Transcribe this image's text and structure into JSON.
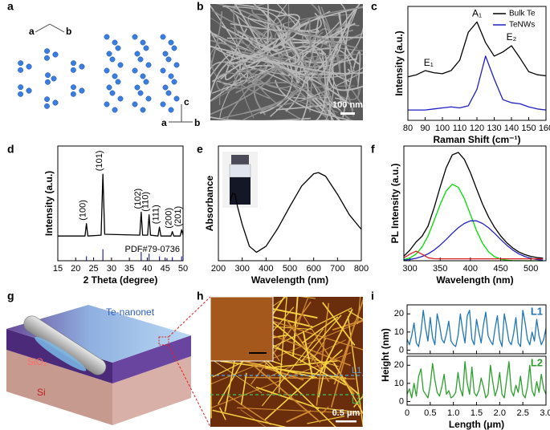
{
  "panel_labels": [
    "a",
    "b",
    "c",
    "d",
    "e",
    "f",
    "g",
    "h",
    "i"
  ],
  "panel_a": {
    "axes_top": [
      "a",
      "b"
    ],
    "axes_bottom": [
      "c",
      "a",
      "b"
    ]
  },
  "panel_b": {
    "scale_bar": "100 nm"
  },
  "panel_g": {
    "labels": [
      "Te-nanonet",
      "SiO₂",
      "Si"
    ]
  },
  "panel_h": {
    "scale_bar": "0.5 μm",
    "line_labels": [
      "L1",
      "L2"
    ]
  },
  "chart_data": [
    {
      "type": "line",
      "xlabel": "Raman Shift (cm⁻¹)",
      "ylabel": "Intensity (a.u.)",
      "x": [
        80,
        85,
        90,
        95,
        100,
        105,
        110,
        115,
        120,
        125,
        130,
        135,
        140,
        145,
        150,
        155,
        160
      ],
      "series": [
        {
          "name": "Bulk Te",
          "color": "#000000",
          "values": [
            0.42,
            0.44,
            0.48,
            0.46,
            0.45,
            0.48,
            0.58,
            0.85,
            0.95,
            0.75,
            0.62,
            0.66,
            0.72,
            0.6,
            0.47,
            0.44,
            0.43
          ]
        },
        {
          "name": "TeNWs",
          "color": "#1f1fbf",
          "values": [
            0.1,
            0.1,
            0.1,
            0.11,
            0.12,
            0.13,
            0.12,
            0.14,
            0.3,
            0.62,
            0.4,
            0.2,
            0.17,
            0.16,
            0.13,
            0.11,
            0.1
          ]
        }
      ],
      "xlim": [
        80,
        160
      ],
      "ylim": [
        0,
        1.1
      ],
      "xticks": [
        80,
        90,
        100,
        110,
        120,
        130,
        140,
        150,
        160
      ],
      "legend": "upper right",
      "annotations": [
        {
          "text": "E₁",
          "x": 92
        },
        {
          "text": "A₁",
          "x": 120
        },
        {
          "text": "E₂",
          "x": 140
        }
      ]
    },
    {
      "type": "line",
      "xlabel": "2 Theta (degree)",
      "ylabel": "Intensity (a.u.)",
      "x": [
        15,
        22.6,
        23,
        23.4,
        27.1,
        27.6,
        28.1,
        37.9,
        38.3,
        38.7,
        40.1,
        40.5,
        40.9,
        43,
        43.4,
        43.8,
        46.6,
        47,
        47.4,
        49.2,
        49.6,
        50
      ],
      "series": [
        {
          "color": "#000000",
          "values": [
            0.28,
            0.28,
            0.42,
            0.28,
            0.29,
            0.98,
            0.3,
            0.29,
            0.55,
            0.29,
            0.29,
            0.52,
            0.29,
            0.28,
            0.38,
            0.28,
            0.28,
            0.33,
            0.28,
            0.28,
            0.35,
            0.29
          ]
        }
      ],
      "xlim": [
        15,
        50
      ],
      "ylim": [
        0,
        1.3
      ],
      "xticks": [
        15,
        20,
        25,
        30,
        35,
        40,
        45,
        50
      ],
      "annotations": [
        {
          "text": "(100)",
          "x": 23
        },
        {
          "text": "(101)",
          "x": 27.6
        },
        {
          "text": "(102)",
          "x": 38.3
        },
        {
          "text": "(110)",
          "x": 40.5
        },
        {
          "text": "(111)",
          "x": 43.4
        },
        {
          "text": "(200)",
          "x": 47
        },
        {
          "text": "(201)",
          "x": 49.6
        }
      ],
      "reference": {
        "label": "PDF#79-0736",
        "color": "#2222cc",
        "x": [
          23,
          27.6,
          38.3,
          40.5,
          43.4,
          45.5,
          47,
          49.6
        ],
        "values": [
          0.05,
          0.13,
          0.1,
          0.08,
          0.05,
          0.03,
          0.04,
          0.05
        ]
      }
    },
    {
      "type": "line",
      "xlabel": "Wavelength (nm)",
      "ylabel": "Absorbance",
      "x": [
        250,
        260,
        270,
        280,
        300,
        330,
        360,
        400,
        450,
        500,
        550,
        600,
        620,
        650,
        700,
        750,
        800
      ],
      "series": [
        {
          "color": "#000000",
          "values": [
            0.5,
            0.56,
            0.55,
            0.45,
            0.3,
            0.12,
            0.07,
            0.12,
            0.27,
            0.45,
            0.62,
            0.72,
            0.73,
            0.7,
            0.55,
            0.38,
            0.26
          ]
        }
      ],
      "xlim": [
        200,
        800
      ],
      "ylim": [
        0,
        0.95
      ],
      "xticks": [
        200,
        300,
        400,
        500,
        600,
        700,
        800
      ]
    },
    {
      "type": "line",
      "xlabel": "Wavelength (nm)",
      "ylabel": "PL Intensity (a.u.)",
      "x": [
        290,
        300,
        310,
        320,
        330,
        340,
        350,
        360,
        370,
        380,
        390,
        400,
        410,
        420,
        430,
        440,
        450,
        460,
        470,
        480,
        490,
        500,
        510,
        520
      ],
      "series": [
        {
          "color": "#000000",
          "values": [
            0.049,
            0.111,
            0.194,
            0.256,
            0.363,
            0.553,
            0.77,
            0.973,
            1.107,
            1.133,
            1.06,
            0.922,
            0.755,
            0.594,
            0.458,
            0.349,
            0.26,
            0.189,
            0.134,
            0.092,
            0.064,
            0.045,
            0.033,
            0.027
          ]
        },
        {
          "color": "#00dd00",
          "values": [
            0.011,
            0.029,
            0.069,
            0.143,
            0.26,
            0.42,
            0.587,
            0.73,
            0.8,
            0.768,
            0.65,
            0.485,
            0.318,
            0.184,
            0.093,
            0.042,
            0.017,
            0.006,
            0.002,
            0.001,
            0,
            0,
            0,
            0
          ]
        },
        {
          "color": "#2020c0",
          "values": [
            0.007,
            0.013,
            0.025,
            0.044,
            0.072,
            0.112,
            0.163,
            0.223,
            0.287,
            0.345,
            0.39,
            0.417,
            0.417,
            0.39,
            0.345,
            0.287,
            0.223,
            0.163,
            0.112,
            0.072,
            0.044,
            0.025,
            0.013,
            0.007
          ]
        },
        {
          "color": "#e02020",
          "values": [
            0.031,
            0.069,
            0.1,
            0.069,
            0.031,
            0.021,
            0.02,
            0.02,
            0.02,
            0.02,
            0.02,
            0.02,
            0.02,
            0.02,
            0.02,
            0.02,
            0.02,
            0.02,
            0.02,
            0.02,
            0.02,
            0.02,
            0.02,
            0.02
          ]
        }
      ],
      "xlim": [
        290,
        525
      ],
      "ylim": [
        0,
        1.2
      ],
      "xticks": [
        300,
        350,
        400,
        450,
        500
      ]
    },
    {
      "type": "line",
      "ylabel": "Height (nm)",
      "x": [
        0,
        0.05,
        0.1,
        0.15,
        0.2,
        0.25,
        0.3,
        0.35,
        0.4,
        0.45,
        0.5,
        0.55,
        0.6,
        0.65,
        0.7,
        0.75,
        0.8,
        0.85,
        0.9,
        0.95,
        1,
        1.05,
        1.1,
        1.15,
        1.2,
        1.25,
        1.3,
        1.35,
        1.4,
        1.45,
        1.5,
        1.55,
        1.6,
        1.65,
        1.7,
        1.75,
        1.8,
        1.85,
        1.9,
        1.95,
        2,
        2.05,
        2.1,
        2.15,
        2.2,
        2.25,
        2.3,
        2.35,
        2.4,
        2.45,
        2.5,
        2.55,
        2.6,
        2.65,
        2.7,
        2.75,
        2.8,
        2.85,
        2.9,
        2.95,
        3
      ],
      "series": [
        {
          "name": "L1",
          "color": "#1f77b4",
          "values": [
            6,
            3,
            8,
            15,
            4,
            2,
            10,
            22,
            12,
            5,
            18,
            7,
            3,
            20,
            14,
            6,
            4,
            9,
            16,
            5,
            3,
            2,
            8,
            20,
            11,
            4,
            19,
            22,
            6,
            3,
            17,
            10,
            4,
            14,
            21,
            8,
            5,
            3,
            12,
            19,
            6,
            2,
            20,
            13,
            5,
            3,
            9,
            18,
            4,
            2,
            22,
            15,
            6,
            3,
            10,
            5,
            17,
            8,
            3,
            6,
            12
          ]
        }
      ],
      "xlim": [
        0,
        3
      ],
      "ylim": [
        -2,
        25
      ],
      "yticks": [
        0,
        10,
        20
      ]
    },
    {
      "type": "line",
      "xlabel": "Length (μm)",
      "x": [
        0,
        0.05,
        0.1,
        0.15,
        0.2,
        0.25,
        0.3,
        0.35,
        0.4,
        0.45,
        0.5,
        0.55,
        0.6,
        0.65,
        0.7,
        0.75,
        0.8,
        0.85,
        0.9,
        0.95,
        1,
        1.05,
        1.1,
        1.15,
        1.2,
        1.25,
        1.3,
        1.35,
        1.4,
        1.45,
        1.5,
        1.55,
        1.6,
        1.65,
        1.7,
        1.75,
        1.8,
        1.85,
        1.9,
        1.95,
        2,
        2.05,
        2.1,
        2.15,
        2.2,
        2.25,
        2.3,
        2.35,
        2.4,
        2.45,
        2.5,
        2.55,
        2.6,
        2.65,
        2.7,
        2.75,
        2.8,
        2.85,
        2.9,
        2.95,
        3
      ],
      "series": [
        {
          "name": "L2",
          "color": "#2ca02c",
          "values": [
            4,
            7,
            2,
            10,
            3,
            14,
            18,
            6,
            4,
            2,
            9,
            21,
            12,
            5,
            3,
            8,
            15,
            4,
            6,
            2,
            3,
            5,
            16,
            7,
            3,
            22,
            10,
            4,
            19,
            5,
            3,
            6,
            13,
            8,
            2,
            4,
            20,
            11,
            3,
            7,
            16,
            4,
            2,
            12,
            22,
            6,
            3,
            9,
            5,
            14,
            4,
            2,
            8,
            20,
            6,
            3,
            11,
            5,
            15,
            7,
            4
          ]
        }
      ],
      "xlim": [
        0,
        3
      ],
      "ylim": [
        -2,
        25
      ],
      "yticks": [
        0,
        10,
        20
      ],
      "xticks": [
        0,
        0.5,
        {
          "value": 1,
          "label": "1.0"
        },
        1.5,
        {
          "value": 2,
          "label": "2.0"
        },
        2.5,
        {
          "value": 3,
          "label": "3.0"
        }
      ]
    }
  ]
}
